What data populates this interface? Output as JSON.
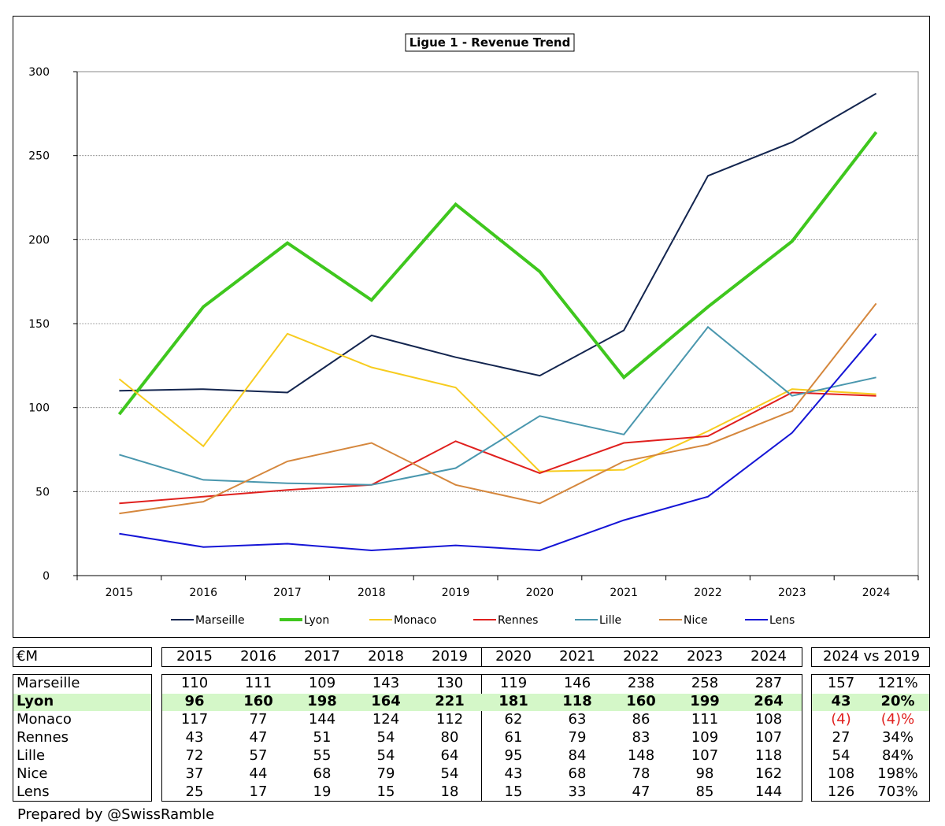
{
  "chart_data": {
    "type": "line",
    "title": "Ligue 1 - Revenue Trend",
    "x": [
      "2015",
      "2016",
      "2017",
      "2018",
      "2019",
      "2020",
      "2021",
      "2022",
      "2023",
      "2024"
    ],
    "ylim": [
      0,
      300
    ],
    "yticks": [
      0,
      50,
      100,
      150,
      200,
      250,
      300
    ],
    "grid": true,
    "legend_position": "bottom",
    "series": [
      {
        "name": "Marseille",
        "color": "#13254f",
        "width": 2,
        "values": [
          110,
          111,
          109,
          143,
          130,
          119,
          146,
          238,
          258,
          287
        ]
      },
      {
        "name": "Lyon",
        "color": "#3fc71e",
        "width": 4,
        "values": [
          96,
          160,
          198,
          164,
          221,
          181,
          118,
          160,
          199,
          264
        ]
      },
      {
        "name": "Monaco",
        "color": "#f7cc1f",
        "width": 2,
        "values": [
          117,
          77,
          144,
          124,
          112,
          62,
          63,
          86,
          111,
          108
        ]
      },
      {
        "name": "Rennes",
        "color": "#e0201e",
        "width": 2,
        "values": [
          43,
          47,
          51,
          54,
          80,
          61,
          79,
          83,
          109,
          107
        ]
      },
      {
        "name": "Lille",
        "color": "#4a97ae",
        "width": 2,
        "values": [
          72,
          57,
          55,
          54,
          64,
          95,
          84,
          148,
          107,
          118
        ]
      },
      {
        "name": "Nice",
        "color": "#d5873d",
        "width": 2,
        "values": [
          37,
          44,
          68,
          79,
          54,
          43,
          68,
          78,
          98,
          162
        ]
      },
      {
        "name": "Lens",
        "color": "#1515d6",
        "width": 2,
        "values": [
          25,
          17,
          19,
          15,
          18,
          15,
          33,
          47,
          85,
          144
        ]
      }
    ]
  },
  "table": {
    "unit_label": "€M",
    "years": [
      "2015",
      "2016",
      "2017",
      "2018",
      "2019",
      "2020",
      "2021",
      "2022",
      "2023",
      "2024"
    ],
    "compare_header": "2024 vs 2019",
    "rows": [
      {
        "club": "Marseille",
        "values": [
          "110",
          "111",
          "109",
          "143",
          "130",
          "119",
          "146",
          "238",
          "258",
          "287"
        ],
        "diff": "157",
        "pct": "121%"
      },
      {
        "club": "Lyon",
        "values": [
          "96",
          "160",
          "198",
          "164",
          "221",
          "181",
          "118",
          "160",
          "199",
          "264"
        ],
        "diff": "43",
        "pct": "20%"
      },
      {
        "club": "Monaco",
        "values": [
          "117",
          "77",
          "144",
          "124",
          "112",
          "62",
          "63",
          "86",
          "111",
          "108"
        ],
        "diff": "(4)",
        "pct": "(4)%"
      },
      {
        "club": "Rennes",
        "values": [
          "43",
          "47",
          "51",
          "54",
          "80",
          "61",
          "79",
          "83",
          "109",
          "107"
        ],
        "diff": "27",
        "pct": "34%"
      },
      {
        "club": "Lille",
        "values": [
          "72",
          "57",
          "55",
          "54",
          "64",
          "95",
          "84",
          "148",
          "107",
          "118"
        ],
        "diff": "54",
        "pct": "84%"
      },
      {
        "club": "Nice",
        "values": [
          "37",
          "44",
          "68",
          "79",
          "54",
          "43",
          "68",
          "78",
          "98",
          "162"
        ],
        "diff": "108",
        "pct": "198%"
      },
      {
        "club": "Lens",
        "values": [
          "25",
          "17",
          "19",
          "15",
          "18",
          "15",
          "33",
          "47",
          "85",
          "144"
        ],
        "diff": "126",
        "pct": "703%"
      }
    ],
    "highlight_row": "Lyon",
    "highlight_color": "#d4f7c8",
    "negative_color": "#e0201e"
  },
  "footer": "Prepared by @SwissRamble"
}
